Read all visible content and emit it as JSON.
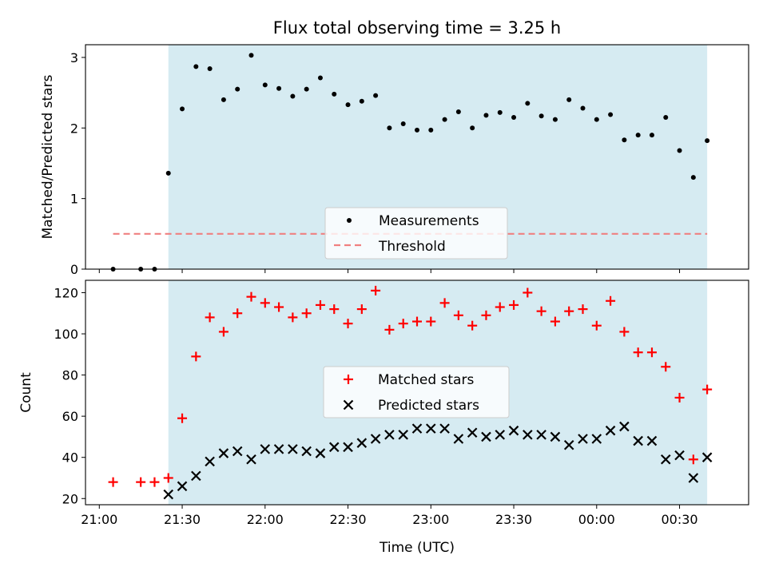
{
  "figure": {
    "title": "Flux total observing time = 3.25 h",
    "xlabel": "Time (UTC)"
  },
  "colors": {
    "shade": "#add8e6",
    "measurement": "#000000",
    "threshold": "#f08080",
    "matched": "#ff0000",
    "predicted": "#000000"
  },
  "chart_data": [
    {
      "type": "scatter",
      "ylabel": "Matched/Predicted stars",
      "ylim": [
        0,
        3.18
      ],
      "yticks": [
        0,
        1,
        2,
        3
      ],
      "shaded_span": {
        "start": "21:25",
        "end": "00:40"
      },
      "threshold": 0.5,
      "threshold_x_range": [
        "21:05",
        "00:40"
      ],
      "legend": {
        "placement": "lower center",
        "entries": [
          "Measurements",
          "Threshold"
        ]
      },
      "series": [
        {
          "name": "Measurements",
          "x": [
            "21:05",
            "21:15",
            "21:20",
            "21:25",
            "21:30",
            "21:35",
            "21:40",
            "21:45",
            "21:50",
            "21:55",
            "22:00",
            "22:05",
            "22:10",
            "22:15",
            "22:20",
            "22:25",
            "22:30",
            "22:35",
            "22:40",
            "22:45",
            "22:50",
            "22:55",
            "23:00",
            "23:05",
            "23:10",
            "23:15",
            "23:20",
            "23:25",
            "23:30",
            "23:35",
            "23:40",
            "23:45",
            "23:50",
            "23:55",
            "00:00",
            "00:05",
            "00:10",
            "00:15",
            "00:20",
            "00:25",
            "00:30",
            "00:35",
            "00:40"
          ],
          "y": [
            0.0,
            0.0,
            0.0,
            1.36,
            2.27,
            2.87,
            2.84,
            2.4,
            2.55,
            3.03,
            2.61,
            2.56,
            2.45,
            2.55,
            2.71,
            2.48,
            2.33,
            2.38,
            2.46,
            2.0,
            2.06,
            1.97,
            1.97,
            2.12,
            2.23,
            2.0,
            2.18,
            2.22,
            2.15,
            2.35,
            2.17,
            2.12,
            2.4,
            2.28,
            2.12,
            2.19,
            1.83,
            1.9,
            1.9,
            2.15,
            1.68,
            1.3,
            1.82
          ]
        }
      ]
    },
    {
      "type": "scatter",
      "ylabel": "Count",
      "ylim": [
        17,
        126
      ],
      "yticks": [
        20,
        40,
        60,
        80,
        100,
        120
      ],
      "xlim": [
        "20:55",
        "00:55"
      ],
      "xticks": [
        "21:00",
        "21:30",
        "22:00",
        "22:30",
        "23:00",
        "23:30",
        "00:00",
        "00:30"
      ],
      "shaded_span": {
        "start": "21:25",
        "end": "00:40"
      },
      "legend": {
        "placement": "center",
        "entries": [
          "Matched stars",
          "Predicted stars"
        ]
      },
      "series": [
        {
          "name": "Matched stars",
          "x": [
            "21:05",
            "21:15",
            "21:20",
            "21:25",
            "21:30",
            "21:35",
            "21:40",
            "21:45",
            "21:50",
            "21:55",
            "22:00",
            "22:05",
            "22:10",
            "22:15",
            "22:20",
            "22:25",
            "22:30",
            "22:35",
            "22:40",
            "22:45",
            "22:50",
            "22:55",
            "23:00",
            "23:05",
            "23:10",
            "23:15",
            "23:20",
            "23:25",
            "23:30",
            "23:35",
            "23:40",
            "23:45",
            "23:50",
            "23:55",
            "00:00",
            "00:05",
            "00:10",
            "00:15",
            "00:20",
            "00:25",
            "00:30",
            "00:35",
            "00:40"
          ],
          "y": [
            28,
            28,
            28,
            30,
            59,
            89,
            108,
            101,
            110,
            118,
            115,
            113,
            108,
            110,
            114,
            112,
            105,
            112,
            121,
            102,
            105,
            106,
            106,
            115,
            109,
            104,
            109,
            113,
            114,
            120,
            111,
            106,
            111,
            112,
            104,
            116,
            101,
            91,
            91,
            84,
            69,
            39,
            73
          ]
        },
        {
          "name": "Predicted stars",
          "x": [
            "21:25",
            "21:30",
            "21:35",
            "21:40",
            "21:45",
            "21:50",
            "21:55",
            "22:00",
            "22:05",
            "22:10",
            "22:15",
            "22:20",
            "22:25",
            "22:30",
            "22:35",
            "22:40",
            "22:45",
            "22:50",
            "22:55",
            "23:00",
            "23:05",
            "23:10",
            "23:15",
            "23:20",
            "23:25",
            "23:30",
            "23:35",
            "23:40",
            "23:45",
            "23:50",
            "23:55",
            "00:00",
            "00:05",
            "00:10",
            "00:15",
            "00:20",
            "00:25",
            "00:30",
            "00:35",
            "00:40"
          ],
          "y": [
            22,
            26,
            31,
            38,
            42,
            43,
            39,
            44,
            44,
            44,
            43,
            42,
            45,
            45,
            47,
            49,
            51,
            51,
            54,
            54,
            54,
            49,
            52,
            50,
            51,
            53,
            51,
            51,
            50,
            46,
            49,
            49,
            53,
            55,
            48,
            48,
            39,
            41,
            30,
            40
          ]
        }
      ]
    }
  ]
}
